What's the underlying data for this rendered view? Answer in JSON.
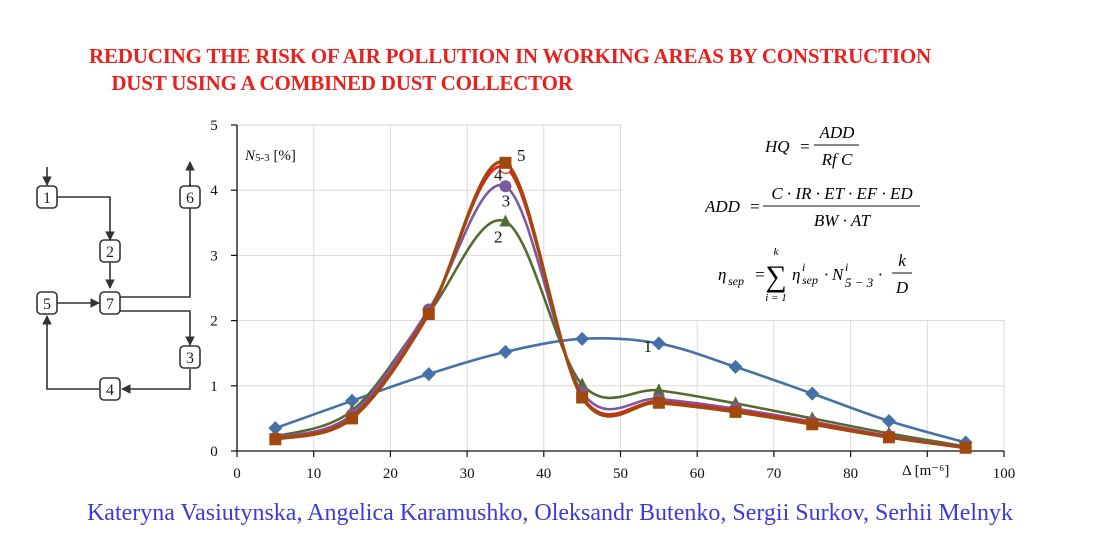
{
  "header": {
    "title_line1": "REDUCING THE RISK OF AIR POLLUTION IN WORKING AREAS BY CONSTRUCTION",
    "title_line2": "DUST USING A COMBINED DUST COLLECTOR",
    "title_color": "#e8201e"
  },
  "authors": {
    "text": "Kateryna Vasiutynska, Angelica Karamushko, Oleksandr Butenko, Sergii Surkov, Serhii Melnyk",
    "color": "#3b3bd6"
  },
  "diagram": {
    "nodes": [
      "1",
      "2",
      "3",
      "4",
      "5",
      "6",
      "7"
    ],
    "edges": [
      [
        "in",
        "1"
      ],
      [
        "1",
        "2"
      ],
      [
        "2",
        "7"
      ],
      [
        "5",
        "7"
      ],
      [
        "7",
        "6"
      ],
      [
        "6",
        "out"
      ],
      [
        "7",
        "3"
      ],
      [
        "3",
        "4"
      ],
      [
        "4",
        "5"
      ]
    ]
  },
  "formulas": {
    "hq": {
      "lhs": "HQ",
      "num": "ADD",
      "den": "Rf C"
    },
    "add": {
      "lhs": "ADD",
      "num": "C · IR · ET · EF · ED",
      "den": "BW · AT"
    },
    "eta": {
      "lhs": "η",
      "lhs_sub": "sep",
      "sum_top": "k",
      "sum_bottom": "i = 1",
      "term1": "η",
      "term1_sup": "i",
      "term1_sub": "sep",
      "term2": "N",
      "term2_sup": "i",
      "term2_sub": "5 − 3",
      "frac_num": "k",
      "frac_den": "D"
    }
  },
  "chart_data": {
    "type": "line",
    "title": "",
    "xlabel": "Δ [m⁻⁶]",
    "ylabel": "N5-3 [%]",
    "xlim": [
      0,
      100
    ],
    "ylim": [
      0,
      5
    ],
    "x_ticks": [
      "0",
      "10",
      "20",
      "30",
      "40",
      "50",
      "60",
      "70",
      "80",
      "90",
      "100"
    ],
    "y_ticks": [
      "0",
      "1",
      "2",
      "3",
      "4",
      "5"
    ],
    "grid": true,
    "x": [
      5,
      15,
      25,
      35,
      45,
      55,
      65,
      75,
      85,
      95
    ],
    "series": [
      {
        "name": "1",
        "color": "#4472a8",
        "marker": "diamond",
        "values": [
          0.35,
          0.77,
          1.18,
          1.52,
          1.72,
          1.65,
          1.29,
          0.88,
          0.46,
          0.13
        ]
      },
      {
        "name": "2",
        "color": "#556b2f",
        "marker": "triangle",
        "values": [
          0.22,
          0.62,
          2.12,
          3.52,
          1.02,
          0.93,
          0.73,
          0.5,
          0.27,
          0.07
        ]
      },
      {
        "name": "3",
        "color": "#7a5a9e",
        "marker": "circle",
        "values": [
          0.2,
          0.56,
          2.17,
          4.06,
          0.9,
          0.8,
          0.65,
          0.45,
          0.23,
          0.06
        ]
      },
      {
        "name": "4",
        "color": "#ee1c1c",
        "marker": "hollow-circle",
        "values": [
          0.19,
          0.52,
          2.12,
          4.35,
          0.84,
          0.76,
          0.62,
          0.43,
          0.22,
          0.05
        ]
      },
      {
        "name": "5",
        "color": "#a0480e",
        "marker": "square",
        "values": [
          0.18,
          0.5,
          2.1,
          4.42,
          0.82,
          0.74,
          0.6,
          0.41,
          0.21,
          0.05
        ]
      }
    ],
    "series_labels": [
      {
        "name": "1",
        "x": 53,
        "y": 1.52
      },
      {
        "name": "2",
        "x": 33.5,
        "y": 3.2
      },
      {
        "name": "3",
        "x": 34.5,
        "y": 3.75
      },
      {
        "name": "4",
        "x": 33.5,
        "y": 4.15
      },
      {
        "name": "5",
        "x": 36.5,
        "y": 4.45
      }
    ]
  }
}
